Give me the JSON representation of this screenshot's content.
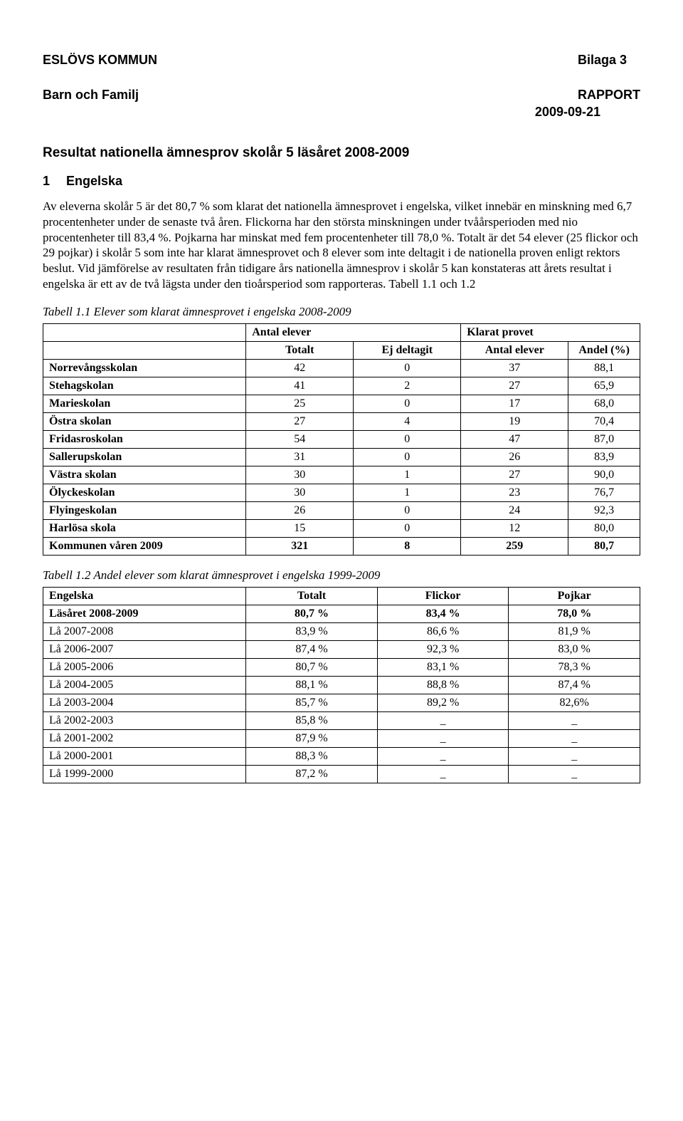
{
  "header": {
    "left_line1": "ESLÖVS KOMMUN",
    "left_line2": "Barn och Familj",
    "right_line1": "Bilaga 3",
    "right_line2": "RAPPORT",
    "date": "2009-09-21"
  },
  "title": "Resultat nationella ämnesprov skolår 5 läsåret 2008-2009",
  "section": {
    "number": "1",
    "name": "Engelska"
  },
  "paragraph": "Av eleverna skolår 5 är det 80,7 % som klarat det nationella ämnesprovet i engelska, vilket innebär en minskning med 6,7 procentenheter under de senaste två åren. Flickorna har den största minskningen under tvåårsperioden med nio procentenheter till 83,4 %. Pojkarna har minskat med fem procentenheter till 78,0 %. Totalt är det 54 elever (25 flickor och 29 pojkar) i skolår 5 som inte har klarat ämnesprovet och 8 elever som inte deltagit i de nationella proven enligt rektors beslut. Vid jämförelse av resultaten från tidigare års nationella ämnesprov i skolår 5 kan konstateras att årets resultat i engelska är ett av de två lägsta under den tioårsperiod som rapporteras. Tabell 1.1 och 1.2",
  "table1": {
    "caption": "Tabell 1.1  Elever som klarat ämnesprovet i engelska 2008-2009",
    "group_headers": {
      "g1": "Antal elever",
      "g2": "Klarat provet"
    },
    "sub_headers": {
      "c2": "Totalt",
      "c3": "Ej deltagit",
      "c4": "Antal elever",
      "c5": "Andel (%)"
    },
    "rows": [
      {
        "name": "Norrevångsskolan",
        "totalt": "42",
        "ej": "0",
        "antal": "37",
        "andel": "88,1"
      },
      {
        "name": "Stehagskolan",
        "totalt": "41",
        "ej": "2",
        "antal": "27",
        "andel": "65,9"
      },
      {
        "name": "Marieskolan",
        "totalt": "25",
        "ej": "0",
        "antal": "17",
        "andel": "68,0"
      },
      {
        "name": "Östra skolan",
        "totalt": "27",
        "ej": "4",
        "antal": "19",
        "andel": "70,4"
      },
      {
        "name": "Fridasroskolan",
        "totalt": "54",
        "ej": "0",
        "antal": "47",
        "andel": "87,0"
      },
      {
        "name": "Sallerupskolan",
        "totalt": "31",
        "ej": "0",
        "antal": "26",
        "andel": "83,9"
      },
      {
        "name": "Västra skolan",
        "totalt": "30",
        "ej": "1",
        "antal": "27",
        "andel": "90,0"
      },
      {
        "name": "Ölyckeskolan",
        "totalt": "30",
        "ej": "1",
        "antal": "23",
        "andel": "76,7"
      },
      {
        "name": "Flyingeskolan",
        "totalt": "26",
        "ej": "0",
        "antal": "24",
        "andel": "92,3"
      },
      {
        "name": "Harlösa skola",
        "totalt": "15",
        "ej": "0",
        "antal": "12",
        "andel": "80,0"
      }
    ],
    "total_row": {
      "name": "Kommunen våren 2009",
      "totalt": "321",
      "ej": "8",
      "antal": "259",
      "andel": "80,7"
    }
  },
  "table2": {
    "caption": "Tabell 1.2  Andel elever som klarat ämnesprovet i engelska 1999-2009",
    "headers": {
      "c1": "Engelska",
      "c2": "Totalt",
      "c3": "Flickor",
      "c4": "Pojkar"
    },
    "rows": [
      {
        "name": "Läsåret 2008-2009",
        "totalt": "80,7 %",
        "flickor": "83,4 %",
        "pojkar": "78,0 %",
        "bold": true
      },
      {
        "name": "Lå 2007-2008",
        "totalt": "83,9 %",
        "flickor": "86,6 %",
        "pojkar": "81,9 %"
      },
      {
        "name": "Lå 2006-2007",
        "totalt": "87,4 %",
        "flickor": "92,3 %",
        "pojkar": "83,0 %"
      },
      {
        "name": "Lå 2005-2006",
        "totalt": "80,7 %",
        "flickor": "83,1 %",
        "pojkar": "78,3 %"
      },
      {
        "name": "Lå 2004-2005",
        "totalt": "88,1 %",
        "flickor": "88,8 %",
        "pojkar": "87,4 %"
      },
      {
        "name": "Lå 2003-2004",
        "totalt": "85,7 %",
        "flickor": "89,2 %",
        "pojkar": "82,6%"
      },
      {
        "name": "Lå 2002-2003",
        "totalt": "85,8 %",
        "flickor": "_",
        "pojkar": "_"
      },
      {
        "name": "Lå 2001-2002",
        "totalt": "87,9 %",
        "flickor": "_",
        "pojkar": "_"
      },
      {
        "name": "Lå 2000-2001",
        "totalt": "88,3 %",
        "flickor": "_",
        "pojkar": "_"
      },
      {
        "name": "Lå 1999-2000",
        "totalt": "87,2 %",
        "flickor": "_",
        "pojkar": "_"
      }
    ]
  }
}
